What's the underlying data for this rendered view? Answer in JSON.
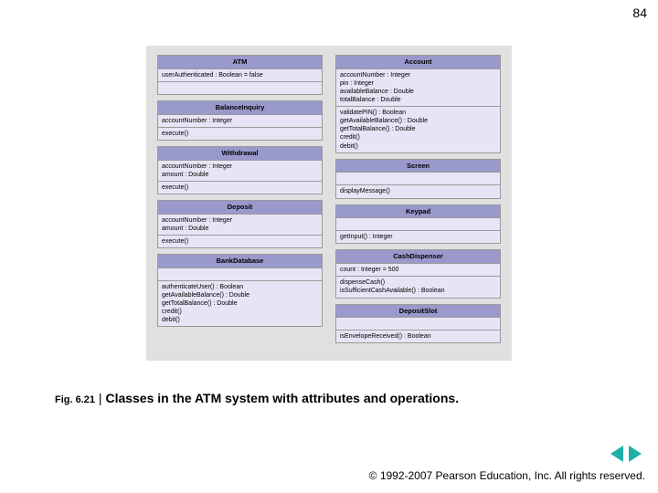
{
  "page_number": "84",
  "diagram": {
    "background_color": "#e0e0e0",
    "class_fill": "#e8e4f5",
    "header_fill": "#9999cc",
    "border_color": "#9a9a9a",
    "columns": [
      [
        {
          "name": "ATM",
          "attrs": [
            "userAuthenticated : Boolean = false"
          ],
          "ops": []
        },
        {
          "name": "BalanceInquiry",
          "attrs": [
            "accountNumber : Integer"
          ],
          "ops": [
            "execute()"
          ]
        },
        {
          "name": "Withdrawal",
          "attrs": [
            "accountNumber : Integer",
            "amount : Double"
          ],
          "ops": [
            "execute()"
          ]
        },
        {
          "name": "Deposit",
          "attrs": [
            "accountNumber : Integer",
            "amount : Double"
          ],
          "ops": [
            "execute()"
          ]
        },
        {
          "name": "BankDatabase",
          "attrs": [],
          "ops": [
            "authenticateUser() : Boolean",
            "getAvailableBalance() : Double",
            "getTotalBalance() : Double",
            "credit()",
            "debit()"
          ]
        }
      ],
      [
        {
          "name": "Account",
          "attrs": [
            "accountNumber : Integer",
            "pin : Integer",
            "availableBalance : Double",
            "totalBalance : Double"
          ],
          "ops": [
            "validatePIN() : Boolean",
            "getAvailableBalance() : Double",
            "getTotalBalance() : Double",
            "credit()",
            "debit()"
          ]
        },
        {
          "name": "Screen",
          "attrs": [],
          "ops": [
            "displayMessage()"
          ]
        },
        {
          "name": "Keypad",
          "attrs": [],
          "ops": [
            "getInput() : Integer"
          ]
        },
        {
          "name": "CashDispenser",
          "attrs": [
            "count : Integer = 500"
          ],
          "ops": [
            "dispenseCash()",
            "isSufficientCashAvailable() : Boolean"
          ]
        },
        {
          "name": "DepositSlot",
          "attrs": [],
          "ops": [
            "isEnvelopeReceived() : Boolean"
          ]
        }
      ]
    ]
  },
  "caption": {
    "label": "Fig. 6.21",
    "separator": " | ",
    "title": "Classes in the ATM system with attributes and operations."
  },
  "footer": "© 1992-2007 Pearson Education, Inc.  All rights reserved.",
  "nav_arrow_color": "#1fb0a8"
}
